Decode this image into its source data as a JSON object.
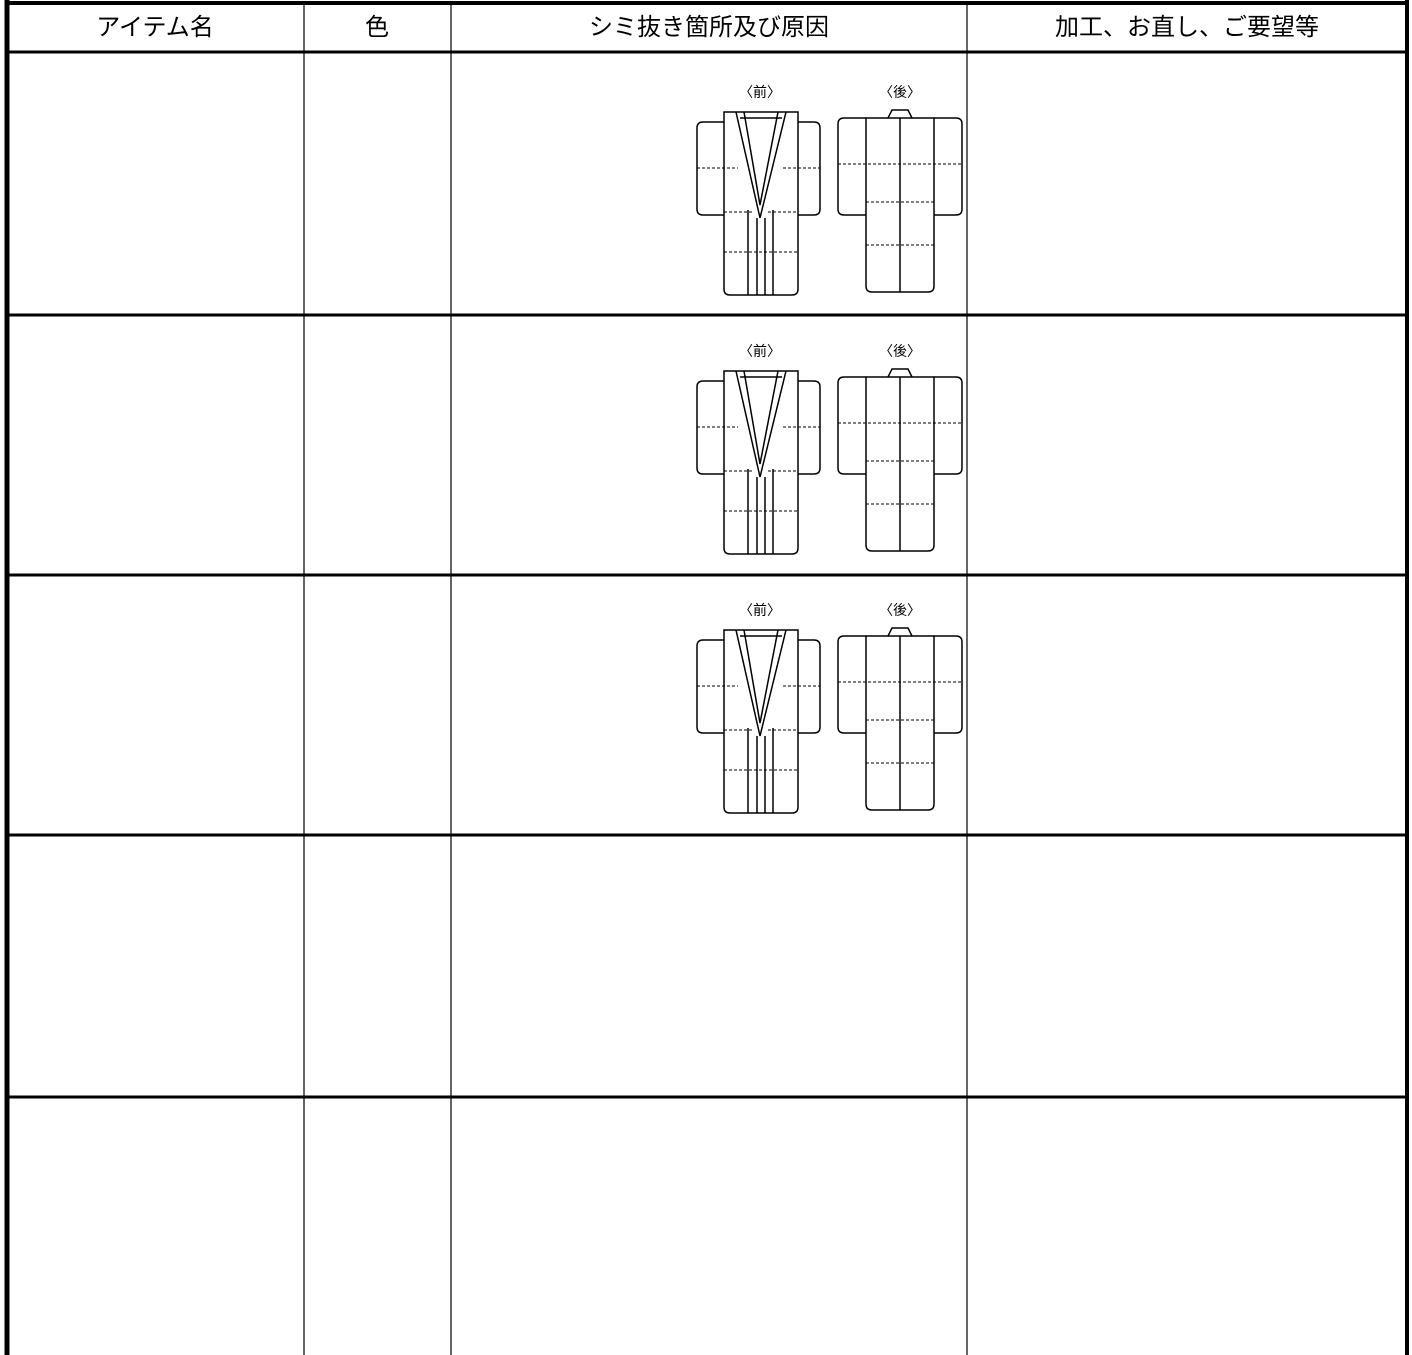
{
  "table": {
    "headers": [
      "アイテム名",
      "色",
      "シミ抜き箇所及び原因",
      "加工、お直し、ご要望等"
    ],
    "diagram_rows": [
      {
        "front_label": "〈前〉",
        "back_label": "〈後〉"
      },
      {
        "front_label": "〈前〉",
        "back_label": "〈後〉"
      },
      {
        "front_label": "〈前〉",
        "back_label": "〈後〉"
      }
    ]
  }
}
